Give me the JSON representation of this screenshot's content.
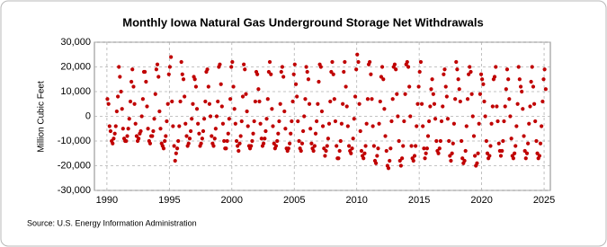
{
  "chart_data": {
    "type": "scatter",
    "title": "Monthly Iowa Natural Gas Underground Storage Net Withdrawals",
    "y_label": "Million Cubic Feet",
    "source": "Source: U.S. Energy Information Administration",
    "xlim": [
      1989,
      2025.5
    ],
    "xticks": [
      1990,
      1995,
      2000,
      2005,
      2010,
      2015,
      2020,
      2025
    ],
    "ylim": [
      -30000,
      30000
    ],
    "yticks": [
      {
        "value": -30000,
        "label": "-30,000"
      },
      {
        "value": -20000,
        "label": "-20,000"
      },
      {
        "value": -10000,
        "label": "-10,000"
      },
      0,
      {
        "value": 10000,
        "label": "10,000"
      },
      {
        "value": 20000,
        "label": "20,000"
      },
      {
        "value": 30000,
        "label": "30,000"
      }
    ],
    "grid": true,
    "series": [
      {
        "color": "#c00000",
        "x": [
          1990.04,
          1990.13,
          1990.21,
          1990.29,
          1990.38,
          1990.46,
          1990.54,
          1990.63,
          1990.71,
          1990.79,
          1990.88,
          1990.96,
          1991.04,
          1991.13,
          1991.21,
          1991.29,
          1991.38,
          1991.46,
          1991.54,
          1991.63,
          1991.71,
          1991.79,
          1991.88,
          1991.96,
          1992.04,
          1992.13,
          1992.21,
          1992.29,
          1992.38,
          1992.46,
          1992.54,
          1992.63,
          1992.71,
          1992.79,
          1992.88,
          1992.96,
          1993.04,
          1993.13,
          1993.21,
          1993.29,
          1993.38,
          1993.46,
          1993.54,
          1993.63,
          1993.71,
          1993.79,
          1993.88,
          1993.96,
          1994.04,
          1994.13,
          1994.21,
          1994.29,
          1994.38,
          1994.46,
          1994.54,
          1994.63,
          1994.71,
          1994.79,
          1994.88,
          1994.96,
          1995.04,
          1995.13,
          1995.21,
          1995.29,
          1995.38,
          1995.46,
          1995.54,
          1995.63,
          1995.71,
          1995.79,
          1995.88,
          1995.96,
          1996.04,
          1996.13,
          1996.21,
          1996.29,
          1996.38,
          1996.46,
          1996.54,
          1996.63,
          1996.71,
          1996.79,
          1996.88,
          1996.96,
          1997.04,
          1997.13,
          1997.21,
          1997.29,
          1997.38,
          1997.46,
          1997.54,
          1997.63,
          1997.71,
          1997.79,
          1997.88,
          1997.96,
          1998.04,
          1998.13,
          1998.21,
          1998.29,
          1998.38,
          1998.46,
          1998.54,
          1998.63,
          1998.71,
          1998.79,
          1998.88,
          1998.96,
          1999.04,
          1999.13,
          1999.21,
          1999.29,
          1999.38,
          1999.46,
          1999.54,
          1999.63,
          1999.71,
          1999.79,
          1999.88,
          1999.96,
          2000.04,
          2000.13,
          2000.21,
          2000.29,
          2000.38,
          2000.46,
          2000.54,
          2000.63,
          2000.71,
          2000.79,
          2000.88,
          2000.96,
          2001.04,
          2001.13,
          2001.21,
          2001.29,
          2001.38,
          2001.46,
          2001.54,
          2001.63,
          2001.71,
          2001.79,
          2001.88,
          2001.96,
          2002.04,
          2002.13,
          2002.21,
          2002.29,
          2002.38,
          2002.46,
          2002.54,
          2002.63,
          2002.71,
          2002.79,
          2002.88,
          2002.96,
          2003.04,
          2003.13,
          2003.21,
          2003.29,
          2003.38,
          2003.46,
          2003.54,
          2003.63,
          2003.71,
          2003.79,
          2003.88,
          2003.96,
          2004.04,
          2004.13,
          2004.21,
          2004.29,
          2004.38,
          2004.46,
          2004.54,
          2004.63,
          2004.71,
          2004.79,
          2004.88,
          2004.96,
          2005.04,
          2005.13,
          2005.21,
          2005.29,
          2005.38,
          2005.46,
          2005.54,
          2005.63,
          2005.71,
          2005.79,
          2005.88,
          2005.96,
          2006.04,
          2006.13,
          2006.21,
          2006.29,
          2006.38,
          2006.46,
          2006.54,
          2006.63,
          2006.71,
          2006.79,
          2006.88,
          2006.96,
          2007.04,
          2007.13,
          2007.21,
          2007.29,
          2007.38,
          2007.46,
          2007.54,
          2007.63,
          2007.71,
          2007.79,
          2007.88,
          2007.96,
          2008.04,
          2008.13,
          2008.21,
          2008.29,
          2008.38,
          2008.46,
          2008.54,
          2008.63,
          2008.71,
          2008.79,
          2008.88,
          2008.96,
          2009.04,
          2009.13,
          2009.21,
          2009.29,
          2009.38,
          2009.46,
          2009.54,
          2009.63,
          2009.71,
          2009.79,
          2009.88,
          2009.96,
          2010.04,
          2010.13,
          2010.21,
          2010.29,
          2010.38,
          2010.46,
          2010.54,
          2010.63,
          2010.71,
          2010.79,
          2010.88,
          2010.96,
          2011.04,
          2011.13,
          2011.21,
          2011.29,
          2011.38,
          2011.46,
          2011.54,
          2011.63,
          2011.71,
          2011.79,
          2011.88,
          2011.96,
          2012.04,
          2012.13,
          2012.21,
          2012.29,
          2012.38,
          2012.46,
          2012.54,
          2012.63,
          2012.71,
          2012.79,
          2012.88,
          2012.96,
          2013.04,
          2013.13,
          2013.21,
          2013.29,
          2013.38,
          2013.46,
          2013.54,
          2013.63,
          2013.71,
          2013.79,
          2013.88,
          2013.96,
          2014.04,
          2014.13,
          2014.21,
          2014.29,
          2014.38,
          2014.46,
          2014.54,
          2014.63,
          2014.71,
          2014.79,
          2014.88,
          2014.96,
          2015.04,
          2015.13,
          2015.21,
          2015.29,
          2015.38,
          2015.46,
          2015.54,
          2015.63,
          2015.71,
          2015.79,
          2015.88,
          2015.96,
          2016.04,
          2016.13,
          2016.21,
          2016.29,
          2016.38,
          2016.46,
          2016.54,
          2016.63,
          2016.71,
          2016.79,
          2016.88,
          2016.96,
          2017.04,
          2017.13,
          2017.21,
          2017.29,
          2017.38,
          2017.46,
          2017.54,
          2017.63,
          2017.71,
          2017.79,
          2017.88,
          2017.96,
          2018.04,
          2018.13,
          2018.21,
          2018.29,
          2018.38,
          2018.46,
          2018.54,
          2018.63,
          2018.71,
          2018.79,
          2018.88,
          2018.96,
          2019.04,
          2019.13,
          2019.21,
          2019.29,
          2019.38,
          2019.46,
          2019.54,
          2019.63,
          2019.71,
          2019.79,
          2019.88,
          2019.96,
          2020.04,
          2020.13,
          2020.21,
          2020.29,
          2020.38,
          2020.46,
          2020.54,
          2020.63,
          2020.71,
          2020.79,
          2020.88,
          2020.96,
          2021.04,
          2021.13,
          2021.21,
          2021.29,
          2021.38,
          2021.46,
          2021.54,
          2021.63,
          2021.71,
          2021.79,
          2021.88,
          2021.96,
          2022.04,
          2022.13,
          2022.21,
          2022.29,
          2022.38,
          2022.46,
          2022.54,
          2022.63,
          2022.71,
          2022.79,
          2022.88,
          2022.96,
          2023.04,
          2023.13,
          2023.21,
          2023.29,
          2023.38,
          2023.46,
          2023.54,
          2023.63,
          2023.71,
          2023.79,
          2023.88,
          2023.96,
          2024.04,
          2024.13,
          2024.21,
          2024.29,
          2024.38,
          2024.46,
          2024.54,
          2024.63,
          2024.71,
          2024.79,
          2024.88,
          2024.96,
          2025.04,
          2025.13
        ],
        "values": [
          7000,
          5000,
          -4000,
          -6000,
          -10000,
          -11000,
          -9000,
          -7000,
          -4000,
          2000,
          8000,
          20000,
          16000,
          10000,
          3000,
          -5000,
          -9000,
          -10000,
          -10000,
          -8000,
          -5000,
          -1000,
          6000,
          14000,
          19000,
          12000,
          5000,
          -3000,
          -8000,
          -10000,
          -9000,
          -7000,
          -6000,
          0,
          7000,
          18000,
          18000,
          14000,
          4000,
          -5000,
          -10000,
          -11000,
          -8000,
          -8000,
          -6000,
          -1000,
          9000,
          19000,
          21000,
          16000,
          2000,
          -5000,
          -11000,
          -12000,
          -13000,
          -10000,
          -8000,
          -2000,
          5000,
          17000,
          20000,
          24000,
          6000,
          -4000,
          -12000,
          -18000,
          -15000,
          -13000,
          -10000,
          -4000,
          6000,
          22000,
          17000,
          15000,
          8000,
          -3000,
          -8000,
          -12000,
          -11000,
          -9000,
          -6000,
          -1000,
          5000,
          16000,
          15000,
          12000,
          3000,
          -3000,
          -7000,
          -12000,
          -11000,
          -9000,
          -6000,
          -1000,
          6000,
          18000,
          19000,
          12000,
          5000,
          0,
          -8000,
          -11000,
          -12000,
          -9000,
          -5000,
          0,
          6000,
          20000,
          21000,
          13000,
          4000,
          -3000,
          -10000,
          -13000,
          -13000,
          -10000,
          -7000,
          -1000,
          7000,
          20000,
          22000,
          12000,
          3000,
          -3000,
          -10000,
          -12000,
          -14000,
          -11000,
          -8000,
          -2000,
          8000,
          21000,
          19000,
          9000,
          2000,
          -4000,
          -12000,
          -13000,
          -12000,
          -10000,
          -7000,
          -2000,
          6000,
          18000,
          17000,
          11000,
          6000,
          -3000,
          -9000,
          -12000,
          -11000,
          -9000,
          -6000,
          -1000,
          7000,
          18000,
          22000,
          17000,
          3000,
          -4000,
          -11000,
          -13000,
          -12000,
          -10000,
          -7000,
          -2000,
          5000,
          18000,
          20000,
          16000,
          2000,
          -5000,
          -13000,
          -14000,
          -13000,
          -11000,
          -7000,
          -2000,
          6000,
          17000,
          21000,
          13000,
          8000,
          -2000,
          -10000,
          -13000,
          -14000,
          -11000,
          -6000,
          0,
          7000,
          20000,
          18000,
          15000,
          5000,
          -5000,
          -11000,
          -13000,
          -14000,
          -12000,
          -7000,
          -2000,
          5000,
          14000,
          21000,
          20000,
          2000,
          -4000,
          -13000,
          -16000,
          -14000,
          -12000,
          -9000,
          -3000,
          6000,
          18000,
          22000,
          17000,
          7000,
          -2000,
          -12000,
          -17000,
          -17000,
          -14000,
          -10000,
          -3000,
          5000,
          18000,
          22000,
          12000,
          4000,
          -4000,
          -12000,
          -14000,
          -15000,
          -13000,
          -9000,
          -1000,
          8000,
          19000,
          25000,
          22000,
          5000,
          -6000,
          -14000,
          -16000,
          -17000,
          -15000,
          -12000,
          -3000,
          7000,
          21000,
          22000,
          17000,
          7000,
          -4000,
          -12000,
          -18000,
          -19000,
          -16000,
          -13000,
          -3000,
          6000,
          16000,
          20000,
          15000,
          3000,
          -8000,
          -14000,
          -20000,
          -21000,
          -18000,
          -13000,
          -2000,
          7000,
          20000,
          21000,
          19000,
          9000,
          0,
          -10000,
          -18000,
          -20000,
          -17000,
          -12000,
          -2000,
          9000,
          21000,
          22000,
          20000,
          12000,
          0,
          -12000,
          -17000,
          -18000,
          -16000,
          -12000,
          -4000,
          5000,
          12000,
          18000,
          22000,
          5000,
          -4000,
          -13000,
          -17000,
          -15000,
          -13000,
          -8000,
          -2000,
          4000,
          11000,
          15000,
          9000,
          5000,
          -1000,
          -10000,
          -14000,
          -15000,
          -13000,
          -10000,
          -2000,
          4000,
          17000,
          19000,
          12000,
          8000,
          -1000,
          -10000,
          -16000,
          -18000,
          -15000,
          -11000,
          -3000,
          7000,
          22000,
          19000,
          15000,
          11000,
          6000,
          -10000,
          -17000,
          -19000,
          -18000,
          -14000,
          -4000,
          7000,
          17000,
          20000,
          18000,
          9000,
          0,
          -8000,
          -16000,
          -20000,
          -19000,
          -15000,
          -3000,
          9000,
          17000,
          15000,
          13000,
          6000,
          0,
          -10000,
          -15000,
          -17000,
          -16000,
          -12000,
          -3000,
          4000,
          15000,
          16000,
          20000,
          4000,
          -2000,
          -11000,
          -14000,
          -16000,
          -14000,
          -10000,
          -2000,
          4000,
          11000,
          19000,
          15000,
          7000,
          0,
          -9000,
          -16000,
          -17000,
          -15000,
          -12000,
          -4000,
          5000,
          20000,
          15000,
          12000,
          10000,
          3000,
          -8000,
          -14000,
          -17000,
          -15000,
          -11000,
          -3000,
          4000,
          14000,
          20000,
          12000,
          5000,
          -2000,
          -10000,
          -15000,
          -17000,
          -16000,
          -11000,
          -4000,
          6000,
          15000,
          19000,
          11000
        ]
      }
    ]
  }
}
